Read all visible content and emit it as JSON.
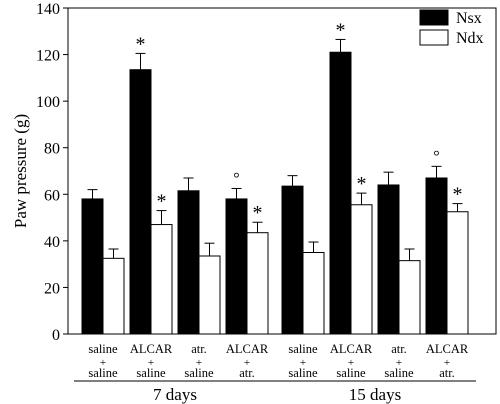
{
  "chart_data": {
    "type": "bar",
    "title": "",
    "ylabel": "Paw pressure (g)",
    "xlabel": "",
    "ylim": [
      0,
      140
    ],
    "yticks": [
      0,
      20,
      40,
      60,
      80,
      100,
      120,
      140
    ],
    "legend": {
      "placement": "top-right"
    },
    "colors": {
      "Nsx": "#000000",
      "Ndx": "#ffffff",
      "stroke": "#000000"
    },
    "groups": [
      {
        "label": "7 days",
        "categories": [
          {
            "line1": "saline",
            "plus": "+",
            "line2": "saline"
          },
          {
            "line1": "ALCAR",
            "plus": "+",
            "line2": "saline"
          },
          {
            "line1": "atr.",
            "plus": "+",
            "line2": "saline"
          },
          {
            "line1": "ALCAR",
            "plus": "+",
            "line2": "atr."
          }
        ]
      },
      {
        "label": "15 days",
        "categories": [
          {
            "line1": "saline",
            "plus": "+",
            "line2": "saline"
          },
          {
            "line1": "ALCAR",
            "plus": "+",
            "line2": "saline"
          },
          {
            "line1": "atr.",
            "plus": "+",
            "line2": "saline"
          },
          {
            "line1": "ALCAR",
            "plus": "+",
            "line2": "atr."
          }
        ]
      }
    ],
    "series": [
      {
        "name": "Nsx",
        "values": [
          58,
          113.5,
          61.5,
          58,
          63.5,
          121,
          64,
          67
        ],
        "errors": [
          4,
          7,
          5.5,
          4.5,
          4.5,
          5.5,
          5.5,
          5
        ],
        "markers": [
          "",
          "*",
          "",
          "°",
          "",
          "*",
          "",
          "°"
        ]
      },
      {
        "name": "Ndx",
        "values": [
          32.5,
          47,
          33.5,
          43.5,
          35,
          55.5,
          31.5,
          52.5
        ],
        "errors": [
          4,
          6,
          5.5,
          4.5,
          4.5,
          5,
          5,
          3.5
        ],
        "markers": [
          "",
          "*",
          "",
          "*",
          "",
          "*",
          "",
          "*"
        ]
      }
    ]
  }
}
